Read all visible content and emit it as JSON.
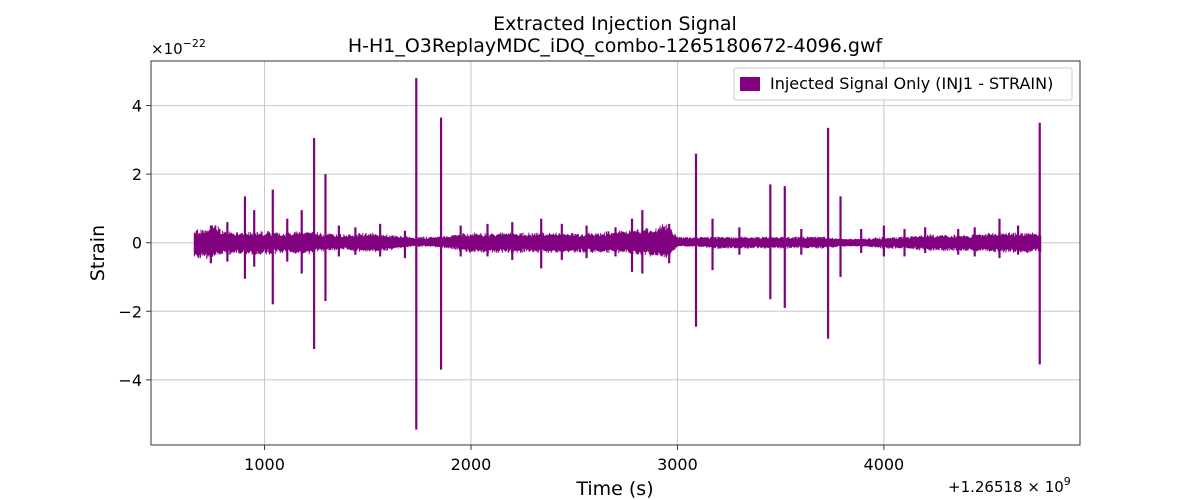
{
  "chart_data": {
    "type": "line",
    "title": "Extracted Injection Signal",
    "subtitle": "H-H1_O3ReplayMDC_iDQ_combo-1265180672-4096.gwf",
    "xlabel": "Time (s)",
    "ylabel": "Strain",
    "xlim": [
      450,
      4950
    ],
    "ylim": [
      -5.9,
      5.3
    ],
    "x_ticks": [
      1000,
      2000,
      3000,
      4000
    ],
    "y_ticks": [
      -4,
      -2,
      0,
      2,
      4
    ],
    "x_tick_labels": [
      "1000",
      "2000",
      "3000",
      "4000"
    ],
    "y_tick_labels": [
      "−4",
      "−2",
      "0",
      "2",
      "4"
    ],
    "y_scale_label": "×10⁻²²",
    "y_scale_base": "×10",
    "y_scale_exp": "−22",
    "x_offset_label": "+1.26518×10⁹",
    "x_offset_base": "+1.26518 × 10",
    "x_offset_exp": "9",
    "grid": true,
    "legend_position": "top-right",
    "series": [
      {
        "name": "Injected Signal Only (INJ1 - STRAIN)",
        "color": "#800080",
        "data_start": 660,
        "data_end": 4760,
        "band": [
          [
            660,
            0.35,
            -0.45
          ],
          [
            720,
            0.3,
            -0.4
          ],
          [
            760,
            0.5,
            -0.35
          ],
          [
            800,
            0.3,
            -0.3
          ],
          [
            900,
            0.25,
            -0.3
          ],
          [
            1000,
            0.3,
            -0.3
          ],
          [
            1100,
            0.25,
            -0.25
          ],
          [
            1200,
            0.3,
            -0.3
          ],
          [
            1300,
            0.25,
            -0.2
          ],
          [
            1400,
            0.2,
            -0.2
          ],
          [
            1500,
            0.25,
            -0.25
          ],
          [
            1600,
            0.2,
            -0.2
          ],
          [
            1700,
            0.15,
            -0.1
          ],
          [
            1800,
            0.15,
            -0.1
          ],
          [
            1900,
            0.2,
            -0.15
          ],
          [
            2000,
            0.25,
            -0.25
          ],
          [
            2100,
            0.25,
            -0.25
          ],
          [
            2200,
            0.25,
            -0.25
          ],
          [
            2300,
            0.25,
            -0.25
          ],
          [
            2400,
            0.25,
            -0.25
          ],
          [
            2500,
            0.25,
            -0.25
          ],
          [
            2600,
            0.25,
            -0.25
          ],
          [
            2700,
            0.3,
            -0.25
          ],
          [
            2800,
            0.35,
            -0.3
          ],
          [
            2900,
            0.4,
            -0.35
          ],
          [
            2950,
            0.5,
            -0.45
          ],
          [
            3000,
            0.15,
            -0.1
          ],
          [
            3100,
            0.15,
            -0.1
          ],
          [
            3200,
            0.15,
            -0.15
          ],
          [
            3300,
            0.15,
            -0.15
          ],
          [
            3400,
            0.15,
            -0.15
          ],
          [
            3500,
            0.15,
            -0.15
          ],
          [
            3600,
            0.15,
            -0.15
          ],
          [
            3700,
            0.15,
            -0.15
          ],
          [
            3800,
            0.1,
            -0.1
          ],
          [
            3900,
            0.1,
            -0.1
          ],
          [
            4000,
            0.15,
            -0.15
          ],
          [
            4100,
            0.15,
            -0.15
          ],
          [
            4200,
            0.2,
            -0.2
          ],
          [
            4300,
            0.2,
            -0.2
          ],
          [
            4400,
            0.2,
            -0.2
          ],
          [
            4500,
            0.25,
            -0.25
          ],
          [
            4600,
            0.25,
            -0.25
          ],
          [
            4700,
            0.25,
            -0.25
          ],
          [
            4760,
            0.25,
            -0.25
          ]
        ],
        "spikes": [
          [
            740,
            0.5,
            -0.6
          ],
          [
            820,
            0.6,
            -0.55
          ],
          [
            905,
            1.35,
            -1.05
          ],
          [
            950,
            0.95,
            -0.7
          ],
          [
            1040,
            1.55,
            -1.8
          ],
          [
            1110,
            0.7,
            -0.55
          ],
          [
            1180,
            0.95,
            -0.9
          ],
          [
            1240,
            3.05,
            -3.1
          ],
          [
            1295,
            2.0,
            -1.7
          ],
          [
            1360,
            0.5,
            -0.4
          ],
          [
            1440,
            0.45,
            -0.35
          ],
          [
            1560,
            0.55,
            -0.4
          ],
          [
            1680,
            0.35,
            -0.45
          ],
          [
            1735,
            4.8,
            -5.45
          ],
          [
            1855,
            3.65,
            -3.7
          ],
          [
            1950,
            0.5,
            -0.4
          ],
          [
            2080,
            0.55,
            -0.4
          ],
          [
            2200,
            0.6,
            -0.5
          ],
          [
            2340,
            0.7,
            -0.75
          ],
          [
            2440,
            0.55,
            -0.5
          ],
          [
            2560,
            0.5,
            -0.45
          ],
          [
            2700,
            0.45,
            -0.4
          ],
          [
            2780,
            0.7,
            -0.85
          ],
          [
            2830,
            0.95,
            -0.9
          ],
          [
            2960,
            0.55,
            -0.6
          ],
          [
            3090,
            2.6,
            -2.45
          ],
          [
            3170,
            0.7,
            -0.8
          ],
          [
            3300,
            0.45,
            -0.35
          ],
          [
            3450,
            1.7,
            -1.65
          ],
          [
            3520,
            1.65,
            -1.9
          ],
          [
            3600,
            0.4,
            -0.35
          ],
          [
            3730,
            3.35,
            -2.8
          ],
          [
            3790,
            1.35,
            -1.0
          ],
          [
            3890,
            0.4,
            -0.3
          ],
          [
            4000,
            0.5,
            -0.4
          ],
          [
            4100,
            0.4,
            -0.4
          ],
          [
            4200,
            0.45,
            -0.3
          ],
          [
            4360,
            0.4,
            -0.35
          ],
          [
            4440,
            0.45,
            -0.4
          ],
          [
            4560,
            0.7,
            -0.45
          ],
          [
            4650,
            0.5,
            -0.35
          ],
          [
            4755,
            3.5,
            -3.55
          ]
        ]
      }
    ]
  }
}
